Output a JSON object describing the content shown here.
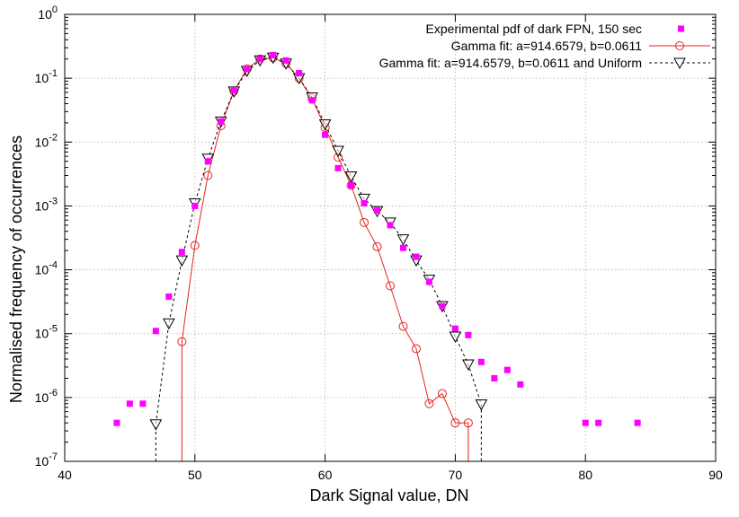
{
  "chart_data": {
    "type": "scatter",
    "xlabel": "Dark Signal value, DN",
    "ylabel": "Normalised frequency of occurrences",
    "xlim": [
      40,
      90
    ],
    "ylim": [
      1e-07,
      1
    ],
    "yscale": "log",
    "grid": true,
    "legend_position": "top-right",
    "x_ticks": [
      40,
      50,
      60,
      70,
      80,
      90
    ],
    "y_ticks": [
      {
        "value": 1e-07,
        "base": "10",
        "exp": "-7"
      },
      {
        "value": 1e-06,
        "base": "10",
        "exp": "-6"
      },
      {
        "value": 1e-05,
        "base": "10",
        "exp": "-5"
      },
      {
        "value": 0.0001,
        "base": "10",
        "exp": "-4"
      },
      {
        "value": 0.001,
        "base": "10",
        "exp": "-3"
      },
      {
        "value": 0.01,
        "base": "10",
        "exp": "-2"
      },
      {
        "value": 0.1,
        "base": "10",
        "exp": "-1"
      },
      {
        "value": 1,
        "base": "10",
        "exp": "0"
      }
    ],
    "series": [
      {
        "name": "Experimental pdf of dark FPN, 150 sec",
        "style": "squares",
        "color": "#ff00ff",
        "x": [
          44,
          45,
          46,
          47,
          48,
          49,
          50,
          51,
          52,
          53,
          54,
          55,
          56,
          57,
          58,
          59,
          60,
          61,
          62,
          63,
          64,
          65,
          66,
          67,
          68,
          69,
          70,
          71,
          72,
          73,
          74,
          75,
          80,
          81,
          84
        ],
        "y": [
          4e-07,
          8e-07,
          8e-07,
          1.1e-05,
          3.8e-05,
          0.00019,
          0.001,
          0.005,
          0.021,
          0.065,
          0.14,
          0.2,
          0.23,
          0.19,
          0.12,
          0.045,
          0.013,
          0.0039,
          0.0021,
          0.0011,
          0.00085,
          0.0005,
          0.00022,
          0.00016,
          6.5e-05,
          2.7e-05,
          1.2e-05,
          9.5e-06,
          3.6e-06,
          2e-06,
          2.7e-06,
          1.6e-06,
          4e-07,
          4e-07,
          4e-07
        ]
      },
      {
        "name": "Gamma fit: a=914.6579, b=0.0611",
        "style": "line-circles",
        "color": "#e8231a",
        "x": [
          49,
          50,
          51,
          52,
          53,
          54,
          55,
          56,
          57,
          58,
          59,
          60,
          61,
          62,
          63,
          64,
          65,
          66,
          67,
          68,
          69,
          70,
          71
        ],
        "y": [
          7.5e-06,
          0.00024,
          0.003,
          0.018,
          0.063,
          0.14,
          0.2,
          0.21,
          0.17,
          0.1,
          0.048,
          0.017,
          0.0058,
          0.0021,
          0.00055,
          0.00023,
          5.6e-05,
          1.3e-05,
          5.8e-06,
          8e-07,
          1.15e-06,
          4e-07,
          4e-07
        ]
      },
      {
        "name": "Gamma fit: a=914.6579, b=0.0611 and Uniform",
        "style": "dash-triangles",
        "color": "#000000",
        "x": [
          47,
          48,
          49,
          50,
          51,
          52,
          53,
          54,
          55,
          56,
          57,
          58,
          59,
          60,
          61,
          62,
          63,
          64,
          65,
          66,
          67,
          68,
          69,
          70,
          71,
          72
        ],
        "y": [
          3.8e-07,
          1.45e-05,
          0.00014,
          0.0011,
          0.0055,
          0.021,
          0.062,
          0.13,
          0.19,
          0.21,
          0.17,
          0.1,
          0.05,
          0.019,
          0.0073,
          0.0029,
          0.0013,
          0.00083,
          0.00055,
          0.0003,
          0.00014,
          7e-05,
          2.7e-05,
          9e-06,
          3.3e-06,
          7.8e-07
        ]
      }
    ]
  }
}
